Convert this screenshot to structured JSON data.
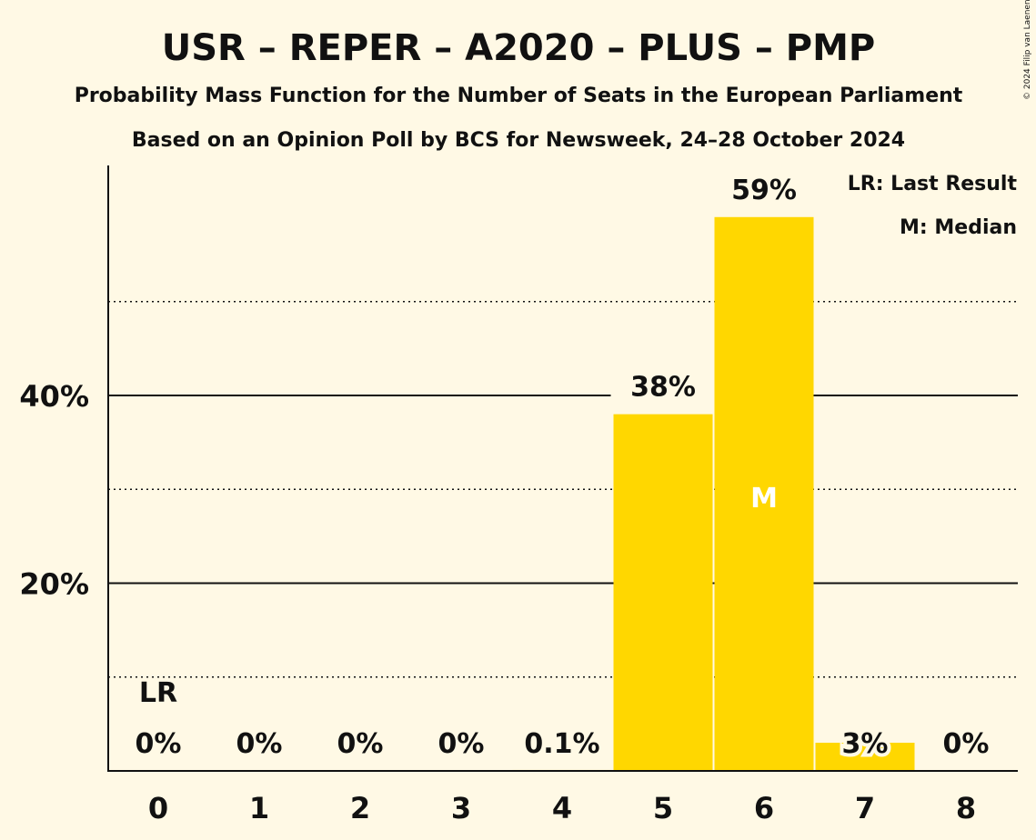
{
  "title": "USR – REPER – A2020 – PLUS – PMP",
  "subtitle": "Probability Mass Function for the Number of Seats in the European Parliament",
  "subtitle2": "Based on an Opinion Poll by BCS for Newsweek, 24–28 October 2024",
  "copyright": "© 2024 Filip van Laenen",
  "legend": {
    "lr": "LR: Last Result",
    "m": "M: Median"
  },
  "colors": {
    "background": "#FFF9E5",
    "bar": "#FFD700",
    "text": "#111111"
  },
  "chart_data": {
    "type": "bar",
    "categories": [
      "0",
      "1",
      "2",
      "3",
      "4",
      "5",
      "6",
      "7",
      "8"
    ],
    "values": [
      0,
      0,
      0,
      0,
      0.1,
      38,
      59,
      3,
      0
    ],
    "value_labels": [
      "0%",
      "0%",
      "0%",
      "0%",
      "0.1%",
      "38%",
      "59%",
      "3%",
      "0%"
    ],
    "ylim": [
      0,
      64.5
    ],
    "yticks": [
      20,
      40
    ],
    "ytick_labels": [
      "20%",
      "40%"
    ],
    "minor_gridlines": [
      10,
      30,
      50
    ],
    "last_result_category": "0",
    "last_result_label": "LR",
    "median_category": "6",
    "median_label": "M",
    "legend_position": "top-right"
  }
}
